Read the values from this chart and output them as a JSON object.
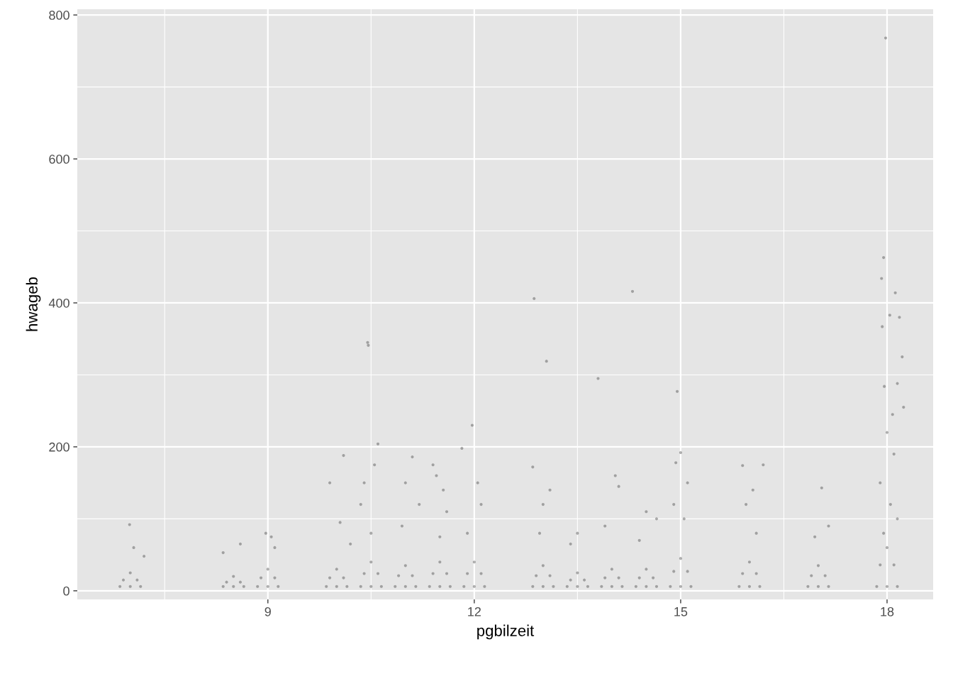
{
  "chart_data": {
    "type": "scatter",
    "xlabel": "pgbilzeit",
    "ylabel": "hwageb",
    "xlim": [
      6.23,
      18.67
    ],
    "xticks": [
      9,
      12,
      15,
      18
    ],
    "ylim": [
      -12,
      808
    ],
    "yticks": [
      0,
      200,
      400,
      600,
      800
    ],
    "grid": true,
    "marker": "circle",
    "series": [
      {
        "color": "#000000",
        "x": [
          6.85,
          7,
          7.15,
          6.9,
          7.1,
          7,
          6.99,
          7.05,
          7.2,
          8.35,
          8.5,
          8.65,
          8.4,
          8.6,
          8.5,
          8.6,
          8.35,
          8.85,
          9,
          9.15,
          8.9,
          9.1,
          9,
          8.97,
          9.05,
          9.1,
          9.85,
          10,
          10.15,
          9.9,
          10.1,
          10,
          10.1,
          9.9,
          10.05,
          10.2,
          10.35,
          10.5,
          10.65,
          10.4,
          10.6,
          10.5,
          10.45,
          10.46,
          10.6,
          10.4,
          10.55,
          10.35,
          10.5,
          10.85,
          11,
          11.15,
          10.9,
          11.1,
          11,
          11.1,
          11.0,
          11.2,
          10.95,
          11.35,
          11.5,
          11.65,
          11.4,
          11.6,
          11.5,
          11.4,
          11.45,
          11.55,
          11.6,
          11.5,
          11.85,
          12,
          12.15,
          11.9,
          12.1,
          12,
          11.82,
          11.97,
          12.05,
          12.1,
          11.9,
          12.85,
          13,
          13.15,
          12.9,
          13.1,
          13,
          12.87,
          13.05,
          12.85,
          13.1,
          13.0,
          12.95,
          13.35,
          13.5,
          13.65,
          13.4,
          13.6,
          13.5,
          13.5,
          13.4,
          13.85,
          14,
          14.15,
          13.9,
          14.1,
          14,
          13.8,
          14.05,
          14.1,
          13.9,
          14.35,
          14.5,
          14.65,
          14.4,
          14.6,
          14.5,
          14.3,
          14.5,
          14.65,
          14.4,
          14.85,
          15,
          15.15,
          14.9,
          15.1,
          15,
          14.95,
          15.0,
          14.93,
          15.1,
          14.9,
          15.05,
          15.85,
          16,
          16.15,
          15.9,
          16.1,
          16,
          15.9,
          16.2,
          16.05,
          15.95,
          16.1,
          16.85,
          17,
          17.15,
          16.9,
          17.1,
          17,
          17.05,
          17.15,
          16.95,
          17.85,
          18,
          18.15,
          17.9,
          18.1,
          18,
          17.98,
          17.95,
          17.92,
          18.12,
          18.04,
          18.18,
          17.93,
          18.22,
          17.96,
          18.15,
          18.24,
          18.08,
          18.0,
          18.1,
          17.9,
          18.05,
          18.15,
          17.95
        ],
        "values": [
          6,
          6,
          6,
          15,
          15,
          25,
          92,
          60,
          48,
          6,
          6,
          6,
          12,
          12,
          20,
          65,
          53,
          6,
          6,
          6,
          18,
          18,
          30,
          80,
          75,
          60,
          6,
          6,
          6,
          18,
          18,
          30,
          188,
          150,
          95,
          65,
          6,
          6,
          6,
          24,
          24,
          40,
          345,
          341,
          204,
          150,
          175,
          120,
          80,
          6,
          6,
          6,
          21,
          21,
          35,
          186,
          150,
          120,
          90,
          6,
          6,
          6,
          24,
          24,
          40,
          175,
          160,
          140,
          110,
          75,
          6,
          6,
          6,
          24,
          24,
          40,
          198,
          230,
          150,
          120,
          80,
          6,
          6,
          6,
          21,
          21,
          35,
          406,
          319,
          172,
          140,
          120,
          80,
          6,
          6,
          6,
          15,
          15,
          25,
          80,
          65,
          6,
          6,
          6,
          18,
          18,
          30,
          295,
          160,
          145,
          90,
          6,
          6,
          6,
          18,
          18,
          30,
          416,
          110,
          100,
          70,
          6,
          6,
          6,
          27,
          27,
          45,
          277,
          192,
          178,
          150,
          120,
          100,
          6,
          6,
          6,
          24,
          24,
          40,
          174,
          175,
          140,
          120,
          80,
          6,
          6,
          6,
          21,
          21,
          35,
          143,
          90,
          75,
          6,
          6,
          6,
          36,
          36,
          60,
          768,
          463,
          434,
          414,
          383,
          380,
          367,
          325,
          284,
          288,
          255,
          245,
          220,
          190,
          150,
          120,
          100,
          80
        ]
      }
    ]
  }
}
